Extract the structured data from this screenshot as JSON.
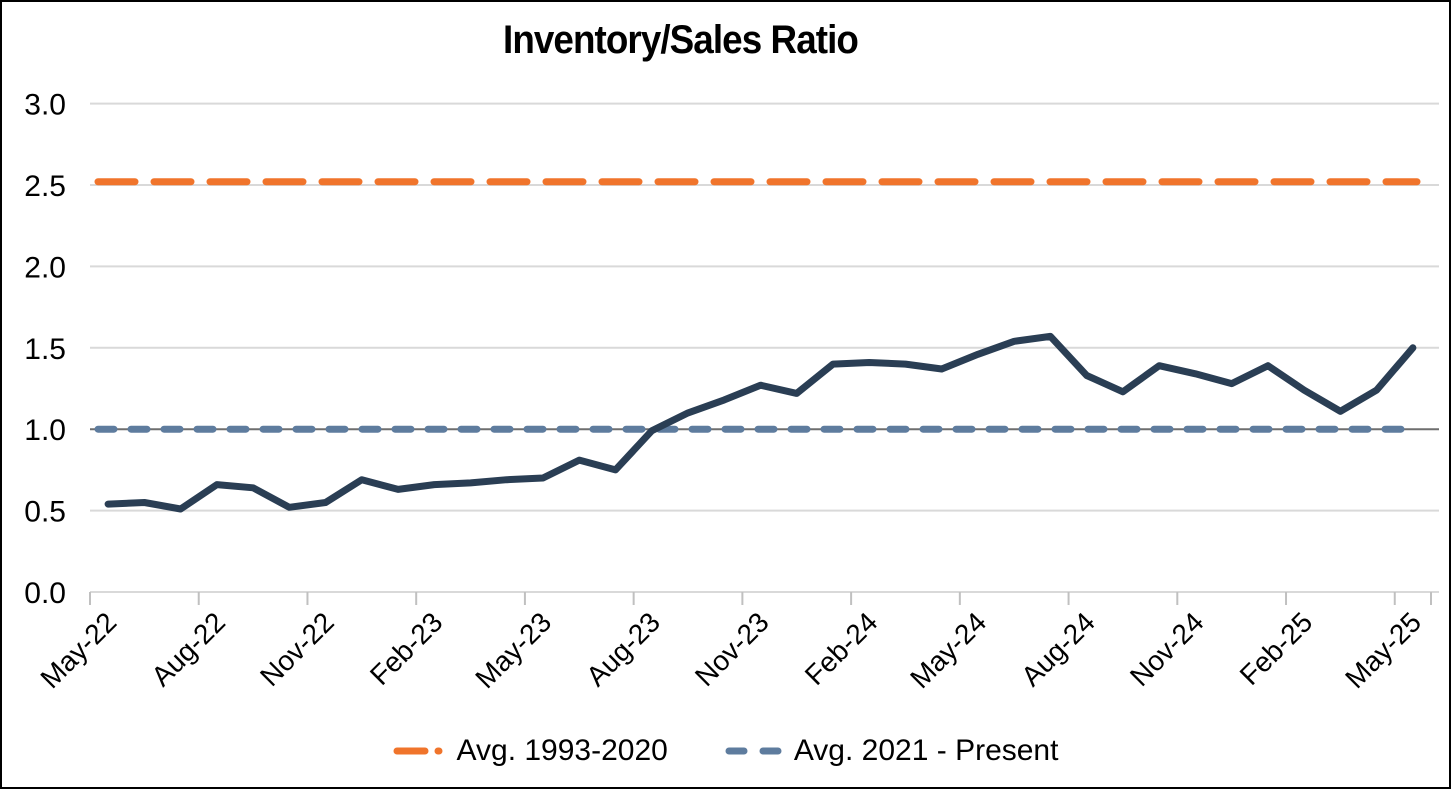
{
  "title": "Inventory/Sales Ratio",
  "legend": {
    "items": [
      {
        "label": "Avg. 1993-2020",
        "color": "#F0742B",
        "pattern": "dash-dot"
      },
      {
        "label": "Avg. 2021 - Present",
        "color": "#5E7C9E",
        "pattern": "dash"
      }
    ]
  },
  "colors": {
    "series_line": "#2A3E54",
    "avg_1993_2020_line": "#F0742B",
    "avg_2021_present_line": "#5E7C9E",
    "gridline": "#D9D9D9",
    "gridline_at_one": "#6E6E6E",
    "axis_tick": "#C0C0C0",
    "text": "#000000"
  },
  "chart_data": {
    "type": "line",
    "title": "Inventory/Sales Ratio",
    "x_categories": [
      "May-22",
      "Jun-22",
      "Jul-22",
      "Aug-22",
      "Sep-22",
      "Oct-22",
      "Nov-22",
      "Dec-22",
      "Jan-23",
      "Feb-23",
      "Mar-23",
      "Apr-23",
      "May-23",
      "Jun-23",
      "Jul-23",
      "Aug-23",
      "Sep-23",
      "Oct-23",
      "Nov-23",
      "Dec-23",
      "Jan-24",
      "Feb-24",
      "Mar-24",
      "Apr-24",
      "May-24",
      "Jun-24",
      "Jul-24",
      "Aug-24",
      "Sep-24",
      "Oct-24",
      "Nov-24",
      "Dec-24",
      "Jan-25",
      "Feb-25",
      "Mar-25",
      "Apr-25",
      "May-25"
    ],
    "x_tick_labels": [
      "May-22",
      "Aug-22",
      "Nov-22",
      "Feb-23",
      "May-23",
      "Aug-23",
      "Nov-23",
      "Feb-24",
      "May-24",
      "Aug-24",
      "Nov-24",
      "Feb-25",
      "May-25"
    ],
    "x_tick_interval": 3,
    "y_tick_labels": [
      "0.0",
      "0.5",
      "1.0",
      "1.5",
      "2.0",
      "2.5",
      "3.0"
    ],
    "ylim": [
      0,
      3.0
    ],
    "ytick_step": 0.5,
    "grid": "horizontal",
    "legend_position": "bottom",
    "series": [
      {
        "name": "Inventory/Sales Ratio",
        "color": "#2A3E54",
        "style": "solid",
        "values": [
          0.54,
          0.55,
          0.51,
          0.66,
          0.64,
          0.52,
          0.55,
          0.69,
          0.63,
          0.66,
          0.67,
          0.69,
          0.7,
          0.81,
          0.75,
          0.99,
          1.1,
          1.18,
          1.27,
          1.22,
          1.4,
          1.41,
          1.4,
          1.37,
          1.46,
          1.54,
          1.57,
          1.33,
          1.23,
          1.39,
          1.34,
          1.28,
          1.39,
          1.24,
          1.11,
          1.24,
          1.5
        ]
      }
    ],
    "reference_lines": [
      {
        "name": "Avg. 1993-2020",
        "value": 2.52,
        "color": "#F0742B",
        "style": "long-dash"
      },
      {
        "name": "Avg. 2021 - Present",
        "value": 1.0,
        "color": "#5E7C9E",
        "style": "dash"
      }
    ]
  }
}
